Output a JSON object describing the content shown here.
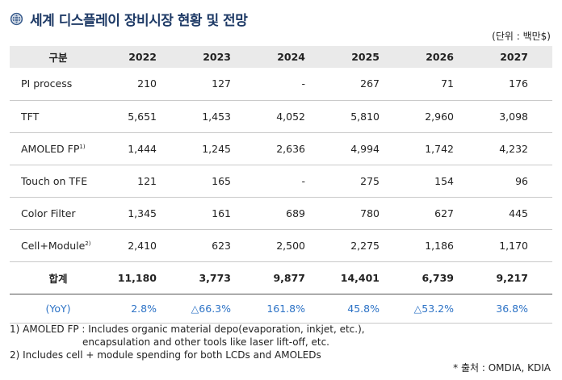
{
  "title": "세계 디스플레이 장비시장 현황 및 전망",
  "unit": "(단위 : 백만$)",
  "table": {
    "header": [
      "구분",
      "2022",
      "2023",
      "2024",
      "2025",
      "2026",
      "2027"
    ],
    "rows": [
      {
        "label": "PI process",
        "sup": "",
        "values": [
          "210",
          "127",
          "-",
          "267",
          "71",
          "176"
        ]
      },
      {
        "label": "TFT",
        "sup": "",
        "values": [
          "5,651",
          "1,453",
          "4,052",
          "5,810",
          "2,960",
          "3,098"
        ]
      },
      {
        "label": "AMOLED FP",
        "sup": "1)",
        "values": [
          "1,444",
          "1,245",
          "2,636",
          "4,994",
          "1,742",
          "4,232"
        ]
      },
      {
        "label": "Touch on TFE",
        "sup": "",
        "values": [
          "121",
          "165",
          "-",
          "275",
          "154",
          "96"
        ]
      },
      {
        "label": "Color Filter",
        "sup": "",
        "values": [
          "1,345",
          "161",
          "689",
          "780",
          "627",
          "445"
        ]
      },
      {
        "label": "Cell+Module",
        "sup": "2)",
        "values": [
          "2,410",
          "623",
          "2,500",
          "2,275",
          "1,186",
          "1,170"
        ]
      }
    ],
    "total": {
      "label": "합계",
      "values": [
        "11,180",
        "3,773",
        "9,877",
        "14,401",
        "6,739",
        "9,217"
      ]
    },
    "yoy": {
      "label": "(YoY)",
      "values": [
        "2.8%",
        "△66.3%",
        "161.8%",
        "45.8%",
        "△53.2%",
        "36.8%"
      ]
    }
  },
  "notes": {
    "note1_line1": "1) AMOLED FP : Includes organic material depo(evaporation, inkjet, etc.),",
    "note1_line2": "encapsulation and other tools like laser lift-off, etc.",
    "note2": "2) Includes cell + module spending for both LCDs and AMOLEDs"
  },
  "source": "* 출처 : OMDIA, KDIA",
  "colors": {
    "title": "#1e3a66",
    "yoy": "#2d73c6",
    "header_bg": "#eaeaea"
  },
  "icons": {
    "title_icon": "globe-icon"
  }
}
